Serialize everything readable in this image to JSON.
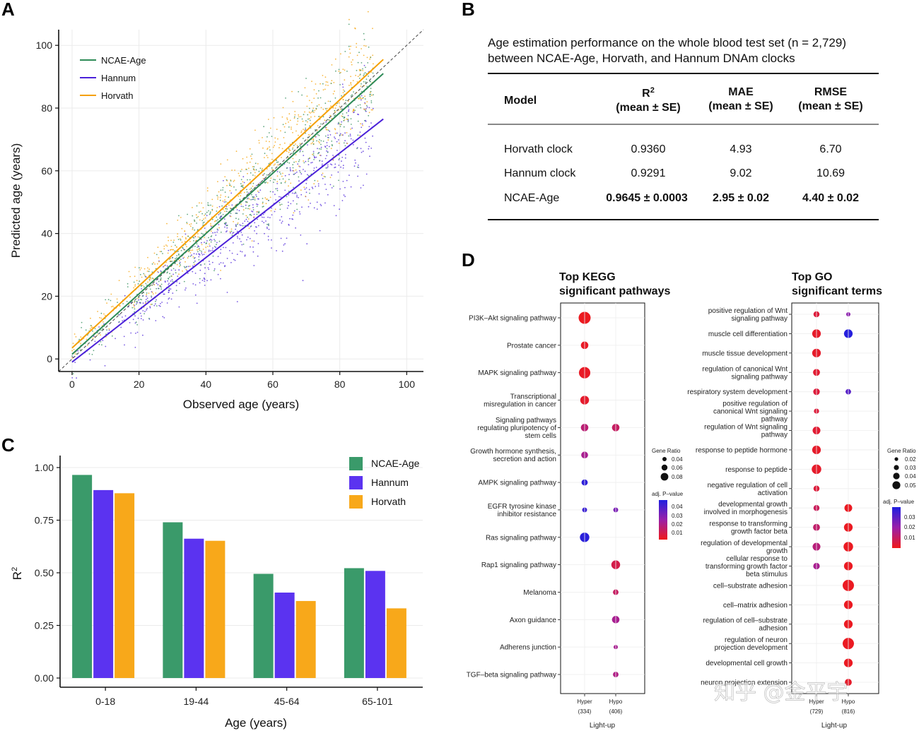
{
  "panels": {
    "a": "A",
    "b": "B",
    "c": "C",
    "d": "D"
  },
  "colors": {
    "ncae": "#2e8b57",
    "hannum": "#4b21d9",
    "horvath": "#f5a000",
    "bar_ncae": "#3a9a6a",
    "bar_hannum": "#5b33f0",
    "bar_horvath": "#f8a81a"
  },
  "chart_data": [
    {
      "id": "A",
      "type": "scatter",
      "xlabel": "Observed age (years)",
      "ylabel": "Predicted age (years)",
      "xlim": [
        -4,
        105
      ],
      "ylim": [
        -4,
        105
      ],
      "xticks": [
        0,
        20,
        40,
        60,
        80,
        100
      ],
      "yticks": [
        0,
        20,
        40,
        60,
        80,
        100
      ],
      "legend": [
        "NCAE-Age",
        "Hannum",
        "Horvath"
      ],
      "fit_lines": [
        {
          "name": "NCAE-Age",
          "x": [
            0,
            93
          ],
          "y": [
            1.5,
            91
          ]
        },
        {
          "name": "Hannum",
          "x": [
            0,
            93
          ],
          "y": [
            -1,
            76.5
          ]
        },
        {
          "name": "Horvath",
          "x": [
            0,
            93
          ],
          "y": [
            3.5,
            95.5
          ]
        }
      ],
      "identity_line": true
    },
    {
      "id": "C",
      "type": "bar",
      "categories": [
        "0-18",
        "19-44",
        "45-64",
        "65-101"
      ],
      "series": [
        {
          "name": "NCAE-Age",
          "values": [
            0.965,
            0.74,
            0.495,
            0.522
          ]
        },
        {
          "name": "Hannum",
          "values": [
            0.893,
            0.662,
            0.406,
            0.509
          ]
        },
        {
          "name": "Horvath",
          "values": [
            0.878,
            0.652,
            0.366,
            0.331
          ]
        }
      ],
      "xlabel": "Age (years)",
      "ylabel": "R",
      "ylabel_sup": "2",
      "ylim": [
        0,
        1.0
      ],
      "yticks": [
        "0.00",
        "0.25",
        "0.50",
        "0.75",
        "1.00"
      ]
    },
    {
      "id": "D-KEGG",
      "type": "scatter",
      "title_lines": [
        "Top KEGG",
        "significant pathways"
      ],
      "columns": [
        "Hyper",
        "Hypo"
      ],
      "column_counts": [
        "(334)",
        "(406)"
      ],
      "xlabel": "Light-up",
      "terms": [
        {
          "label": [
            "PI3K–Akt signaling pathway"
          ],
          "hyper": {
            "ratio": 0.085,
            "p": 0.001
          },
          "hypo": null
        },
        {
          "label": [
            "Prostate cancer"
          ],
          "hyper": {
            "ratio": 0.05,
            "p": 0.002
          },
          "hypo": null
        },
        {
          "label": [
            "MAPK signaling pathway"
          ],
          "hyper": {
            "ratio": 0.08,
            "p": 0.002
          },
          "hypo": null
        },
        {
          "label": [
            "Transcriptional",
            "misregulation in cancer"
          ],
          "hyper": {
            "ratio": 0.06,
            "p": 0.003
          },
          "hypo": null
        },
        {
          "label": [
            "Signaling pathways",
            "regulating pluripotency of",
            "stem cells"
          ],
          "hyper": {
            "ratio": 0.05,
            "p": 0.015
          },
          "hypo": {
            "ratio": 0.05,
            "p": 0.012
          }
        },
        {
          "label": [
            "Growth hormone synthesis,",
            "secretion and action"
          ],
          "hyper": {
            "ratio": 0.045,
            "p": 0.02
          },
          "hypo": null
        },
        {
          "label": [
            "AMPK signaling pathway"
          ],
          "hyper": {
            "ratio": 0.04,
            "p": 0.045
          },
          "hypo": null
        },
        {
          "label": [
            "EGFR tyrosine kinase",
            "inhibitor resistance"
          ],
          "hyper": {
            "ratio": 0.03,
            "p": 0.043
          },
          "hypo": {
            "ratio": 0.03,
            "p": 0.03
          }
        },
        {
          "label": [
            "Ras signaling pathway"
          ],
          "hyper": {
            "ratio": 0.065,
            "p": 0.046
          },
          "hypo": null
        },
        {
          "label": [
            "Rap1 signaling pathway"
          ],
          "hyper": null,
          "hypo": {
            "ratio": 0.06,
            "p": 0.008
          }
        },
        {
          "label": [
            "Melanoma"
          ],
          "hyper": null,
          "hypo": {
            "ratio": 0.035,
            "p": 0.012
          }
        },
        {
          "label": [
            "Axon guidance"
          ],
          "hyper": null,
          "hypo": {
            "ratio": 0.05,
            "p": 0.02
          }
        },
        {
          "label": [
            "Adherens junction"
          ],
          "hyper": null,
          "hypo": {
            "ratio": 0.025,
            "p": 0.02
          }
        },
        {
          "label": [
            "TGF–beta signaling pathway"
          ],
          "hyper": null,
          "hypo": {
            "ratio": 0.035,
            "p": 0.018
          }
        }
      ],
      "size_legend_title": "Gene Ratio",
      "size_legend": [
        "0.04",
        "0.06",
        "0.08"
      ],
      "color_legend_title": "adj. P–value",
      "color_legend": [
        "0.04",
        "0.03",
        "0.02",
        "0.01"
      ]
    },
    {
      "id": "D-GO",
      "type": "scatter",
      "title_lines": [
        "Top GO",
        "significant terms"
      ],
      "columns": [
        "Hyper",
        "Hypo"
      ],
      "column_counts": [
        "(729)",
        "(816)"
      ],
      "xlabel": "Light-up",
      "terms": [
        {
          "label": [
            "positive regulation of Wnt",
            "signaling pathway"
          ],
          "hyper": {
            "ratio": 0.025,
            "p": 0.004
          },
          "hypo": {
            "ratio": 0.015,
            "p": 0.02
          }
        },
        {
          "label": [
            "muscle cell differentiation"
          ],
          "hyper": {
            "ratio": 0.04,
            "p": 0.002
          },
          "hypo": {
            "ratio": 0.04,
            "p": 0.035
          }
        },
        {
          "label": [
            "muscle tissue development"
          ],
          "hyper": {
            "ratio": 0.04,
            "p": 0.002
          },
          "hypo": null
        },
        {
          "label": [
            "regulation of canonical Wnt",
            "signaling pathway"
          ],
          "hyper": {
            "ratio": 0.03,
            "p": 0.003
          },
          "hypo": null
        },
        {
          "label": [
            "respiratory system development"
          ],
          "hyper": {
            "ratio": 0.028,
            "p": 0.004
          },
          "hypo": {
            "ratio": 0.022,
            "p": 0.028
          }
        },
        {
          "label": [
            "positive regulation of",
            "canonical Wnt signaling",
            "pathway"
          ],
          "hyper": {
            "ratio": 0.02,
            "p": 0.004
          },
          "hypo": null
        },
        {
          "label": [
            "regulation of Wnt signaling",
            "pathway"
          ],
          "hyper": {
            "ratio": 0.035,
            "p": 0.003
          },
          "hypo": null
        },
        {
          "label": [
            "response to peptide hormone"
          ],
          "hyper": {
            "ratio": 0.04,
            "p": 0.002
          },
          "hypo": null
        },
        {
          "label": [
            "response to peptide"
          ],
          "hyper": {
            "ratio": 0.045,
            "p": 0.002
          },
          "hypo": null
        },
        {
          "label": [
            "negative regulation of cell",
            "activation"
          ],
          "hyper": {
            "ratio": 0.025,
            "p": 0.004
          },
          "hypo": null
        },
        {
          "label": [
            "developmental growth",
            "involved in morphogenesis"
          ],
          "hyper": {
            "ratio": 0.025,
            "p": 0.008
          },
          "hypo": {
            "ratio": 0.035,
            "p": 0.001
          }
        },
        {
          "label": [
            "response to transforming",
            "growth factor beta"
          ],
          "hyper": {
            "ratio": 0.03,
            "p": 0.01
          },
          "hypo": {
            "ratio": 0.04,
            "p": 0.001
          }
        },
        {
          "label": [
            "regulation of developmental",
            "growth"
          ],
          "hyper": {
            "ratio": 0.035,
            "p": 0.012
          },
          "hypo": {
            "ratio": 0.045,
            "p": 0.001
          }
        },
        {
          "label": [
            "cellular response to",
            "transforming growth factor",
            "beta stimulus"
          ],
          "hyper": {
            "ratio": 0.028,
            "p": 0.015
          },
          "hypo": {
            "ratio": 0.04,
            "p": 0.001
          }
        },
        {
          "label": [
            "cell–substrate adhesion"
          ],
          "hyper": null,
          "hypo": {
            "ratio": 0.055,
            "p": 0.001
          }
        },
        {
          "label": [
            "cell–matrix adhesion"
          ],
          "hyper": null,
          "hypo": {
            "ratio": 0.04,
            "p": 0.001
          }
        },
        {
          "label": [
            "regulation of cell–substrate",
            "adhesion"
          ],
          "hyper": null,
          "hypo": {
            "ratio": 0.04,
            "p": 0.001
          }
        },
        {
          "label": [
            "regulation of neuron",
            "projection development"
          ],
          "hyper": null,
          "hypo": {
            "ratio": 0.055,
            "p": 0.001
          }
        },
        {
          "label": [
            "developmental cell growth"
          ],
          "hyper": null,
          "hypo": {
            "ratio": 0.04,
            "p": 0.001
          }
        },
        {
          "label": [
            "neuron projection extension"
          ],
          "hyper": null,
          "hypo": {
            "ratio": 0.03,
            "p": 0.002
          }
        }
      ],
      "size_legend_title": "Gene Ratio",
      "size_legend": [
        "0.02",
        "0.03",
        "0.04",
        "0.05"
      ],
      "color_legend_title": "adj. P–value",
      "color_legend": [
        "0.03",
        "0.02",
        "0.01"
      ]
    }
  ],
  "table": {
    "caption_lines": [
      "Age estimation performance on the whole blood test set (n = 2,729)",
      "between NCAE-Age, Horvath, and Hannum DNAm clocks"
    ],
    "headers": [
      [
        "Model"
      ],
      [
        "R2",
        "(mean ± SE)"
      ],
      [
        "MAE",
        "(mean ± SE)"
      ],
      [
        "RMSE",
        "(mean ± SE)"
      ]
    ],
    "rows": [
      [
        "Horvath clock",
        "0.9360",
        "4.93",
        "6.70"
      ],
      [
        "Hannum clock",
        "0.9291",
        "9.02",
        "10.69"
      ],
      [
        "NCAE-Age",
        "0.9645 ± 0.0003",
        "2.95 ± 0.02",
        "4.40 ± 0.02"
      ]
    ]
  },
  "watermark": "知乎 @金平宇"
}
